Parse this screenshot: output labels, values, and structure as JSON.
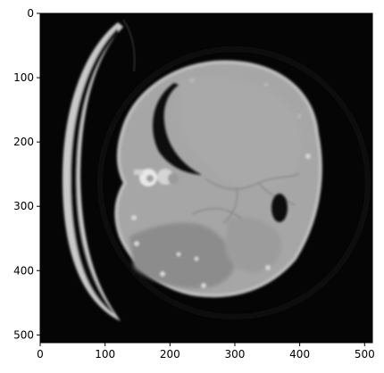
{
  "image": {
    "description_terms": [
      "ct-slice",
      "grayscale"
    ],
    "colors": {
      "background": "#ffffff",
      "image_black": "#050505",
      "tissue": "#a3a3a3",
      "tissue_dark": "#878787",
      "bone": "#e6e6e6",
      "air": "#0a0a0a"
    }
  },
  "axes": {
    "x_ticks": [
      "0",
      "100",
      "200",
      "300",
      "400",
      "500"
    ],
    "y_ticks": [
      "0",
      "100",
      "200",
      "300",
      "400",
      "500"
    ],
    "x_tick_values": [
      0,
      100,
      200,
      300,
      400,
      500
    ],
    "y_tick_values": [
      0,
      100,
      200,
      300,
      400,
      500
    ],
    "xlim": [
      0,
      512
    ],
    "ylim": [
      512,
      0
    ]
  }
}
